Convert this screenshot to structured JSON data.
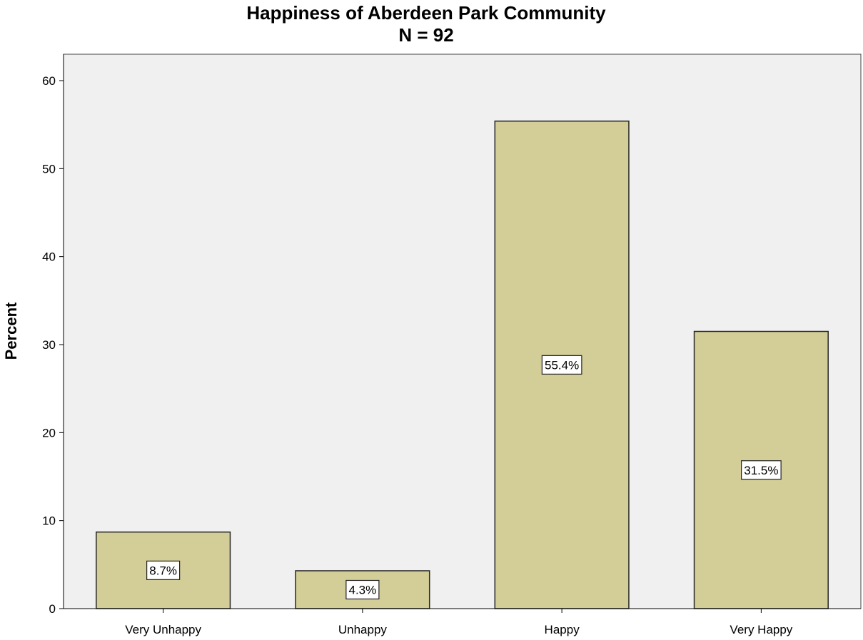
{
  "chart_data": {
    "type": "bar",
    "title": "Happiness of Aberdeen Park Community",
    "subtitle": "N = 92",
    "xlabel": "",
    "ylabel": "Percent",
    "categories": [
      "Very Unhappy",
      "Unhappy",
      "Happy",
      "Very Happy"
    ],
    "values": [
      8.7,
      4.3,
      55.4,
      31.5
    ],
    "data_labels": [
      "8.7%",
      "4.3%",
      "55.4%",
      "31.5%"
    ],
    "ylim": [
      0,
      63
    ],
    "yticks": [
      0,
      10,
      20,
      30,
      40,
      50,
      60
    ],
    "grid": false,
    "legend": "none",
    "colors": {
      "bar_fill": "#d3cd97",
      "bar_stroke": "#262626",
      "plot_background": "#f0f0f0",
      "page_background": "#ffffff"
    }
  }
}
